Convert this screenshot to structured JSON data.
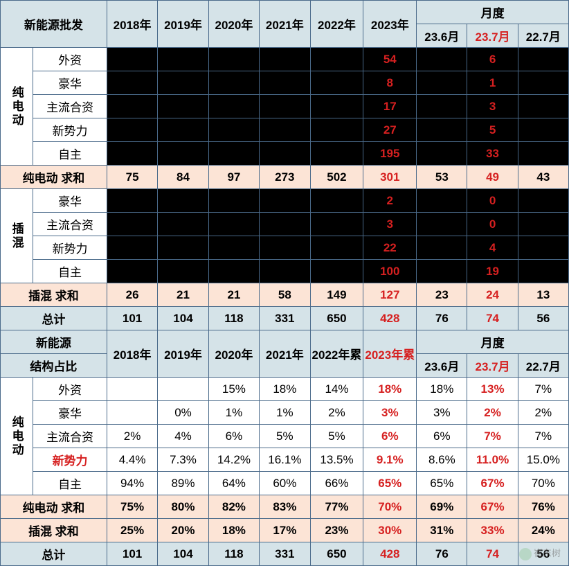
{
  "colors": {
    "border": "#4a6a8a",
    "header_bg": "#d5e3e8",
    "black_bg": "#000000",
    "highlight_bg": "#fce4d6",
    "red_text": "#d62020"
  },
  "top_headers": {
    "col0": "新能源批发",
    "years": [
      "2018年",
      "2019年",
      "2020年",
      "2021年",
      "2022年",
      "2023年"
    ],
    "monthly": "月度",
    "months": [
      "23.6月",
      "23.7月",
      "22.7月"
    ]
  },
  "group1": {
    "vlabel": "纯电动",
    "rows": [
      {
        "label": "外资",
        "v23": "54",
        "m7": "6"
      },
      {
        "label": "豪华",
        "v23": "8",
        "m7": "1"
      },
      {
        "label": "主流合资",
        "v23": "17",
        "m7": "3"
      },
      {
        "label": "新势力",
        "v23": "27",
        "m7": "5"
      },
      {
        "label": "自主",
        "v23": "195",
        "m7": "33"
      }
    ],
    "sum": {
      "label": "纯电动 求和",
      "vals": [
        "75",
        "84",
        "97",
        "273",
        "502",
        "301",
        "53",
        "49",
        "43"
      ]
    }
  },
  "group2": {
    "vlabel": "插混",
    "rows": [
      {
        "label": "豪华",
        "v23": "2",
        "m7": "0"
      },
      {
        "label": "主流合资",
        "v23": "3",
        "m7": "0"
      },
      {
        "label": "新势力",
        "v23": "22",
        "m7": "4"
      },
      {
        "label": "自主",
        "v23": "100",
        "m7": "19"
      }
    ],
    "sum": {
      "label": "插混 求和",
      "vals": [
        "26",
        "21",
        "21",
        "58",
        "149",
        "127",
        "23",
        "24",
        "13"
      ]
    }
  },
  "total1": {
    "label": "总计",
    "vals": [
      "101",
      "104",
      "118",
      "331",
      "650",
      "428",
      "76",
      "74",
      "56"
    ]
  },
  "mid_headers": {
    "col0_1": "新能源",
    "col0_2": "结构占比",
    "years": [
      "2018年",
      "2019年",
      "2020年",
      "2021年",
      "2022年累",
      "2023年累"
    ],
    "monthly": "月度",
    "months": [
      "23.6月",
      "23.7月",
      "22.7月"
    ]
  },
  "group3": {
    "vlabel": "纯电动",
    "rows": [
      {
        "label": "外资",
        "cls": "",
        "vals": [
          "",
          "",
          "15%",
          "18%",
          "14%",
          "18%",
          "18%",
          "13%",
          "7%"
        ]
      },
      {
        "label": "豪华",
        "cls": "",
        "vals": [
          "",
          "0%",
          "1%",
          "1%",
          "2%",
          "3%",
          "3%",
          "2%",
          "2%"
        ]
      },
      {
        "label": "主流合资",
        "cls": "",
        "vals": [
          "2%",
          "4%",
          "6%",
          "5%",
          "5%",
          "6%",
          "6%",
          "7%",
          "7%"
        ]
      },
      {
        "label": "新势力",
        "cls": "redtxt",
        "vals": [
          "4.4%",
          "7.3%",
          "14.2%",
          "16.1%",
          "13.5%",
          "9.1%",
          "8.6%",
          "11.0%",
          "15.0%"
        ]
      },
      {
        "label": "自主",
        "cls": "",
        "vals": [
          "94%",
          "89%",
          "64%",
          "60%",
          "66%",
          "65%",
          "65%",
          "67%",
          "70%"
        ]
      }
    ]
  },
  "sums2": [
    {
      "label": "纯电动 求和",
      "vals": [
        "75%",
        "80%",
        "82%",
        "83%",
        "77%",
        "70%",
        "69%",
        "67%",
        "76%"
      ]
    },
    {
      "label": "插混 求和",
      "vals": [
        "25%",
        "20%",
        "18%",
        "17%",
        "23%",
        "30%",
        "31%",
        "33%",
        "24%"
      ]
    }
  ],
  "total2": {
    "label": "总计",
    "vals": [
      "101",
      "104",
      "118",
      "331",
      "650",
      "428",
      "76",
      "74",
      "56"
    ]
  },
  "watermark": "崔东树"
}
